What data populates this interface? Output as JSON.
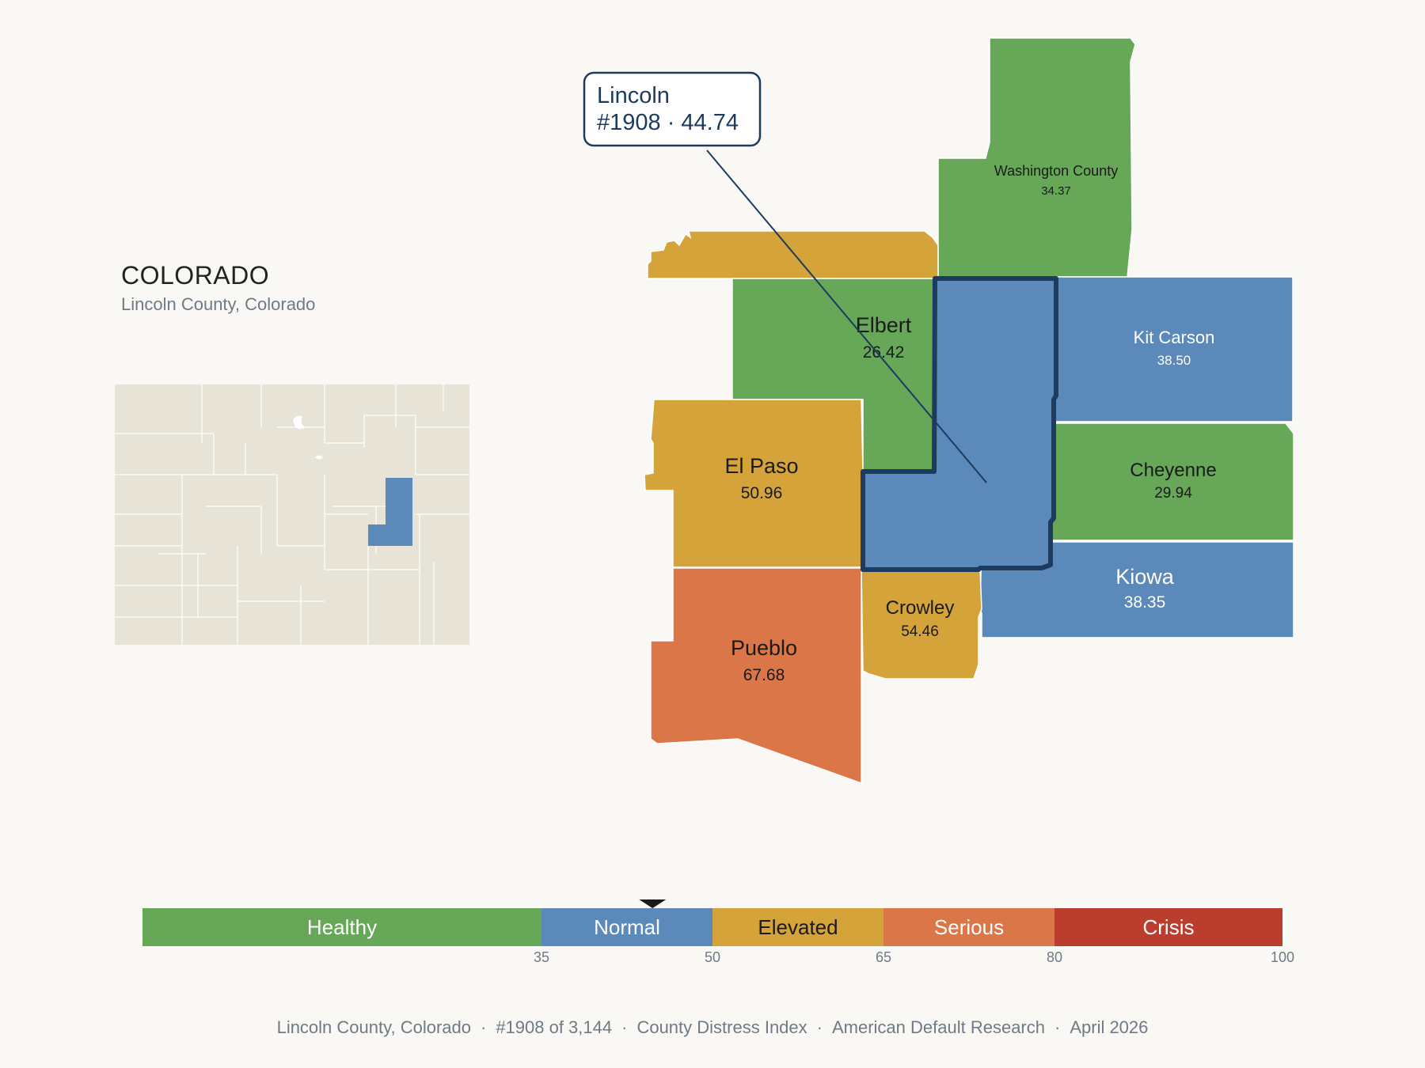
{
  "header": {
    "state": "COLORADO",
    "subtitle": "Lincoln County, Colorado"
  },
  "callout": {
    "name": "Lincoln",
    "rank_value": "#1908 · 44.74"
  },
  "counties": [
    {
      "id": "washington",
      "name": "Washington County",
      "value": "34.37",
      "category": "Healthy"
    },
    {
      "id": "elbert",
      "name": "Elbert",
      "value": "26.42",
      "category": "Healthy"
    },
    {
      "id": "kit-carson",
      "name": "Kit Carson",
      "value": "38.50",
      "category": "Normal"
    },
    {
      "id": "el-paso",
      "name": "El Paso",
      "value": "50.96",
      "category": "Elevated"
    },
    {
      "id": "cheyenne",
      "name": "Cheyenne",
      "value": "29.94",
      "category": "Healthy"
    },
    {
      "id": "kiowa",
      "name": "Kiowa",
      "value": "38.35",
      "category": "Normal"
    },
    {
      "id": "crowley",
      "name": "Crowley",
      "value": "54.46",
      "category": "Elevated"
    },
    {
      "id": "pueblo",
      "name": "Pueblo",
      "value": "67.68",
      "category": "Serious"
    },
    {
      "id": "lincoln",
      "name": "Lincoln",
      "value": "44.74",
      "category": "Normal"
    }
  ],
  "legend": {
    "bands": [
      {
        "label": "Healthy",
        "min": 0,
        "max": 35,
        "color": "#67a758"
      },
      {
        "label": "Normal",
        "min": 35,
        "max": 50,
        "color": "#5b89b9"
      },
      {
        "label": "Elevated",
        "min": 50,
        "max": 65,
        "color": "#d4a43b"
      },
      {
        "label": "Serious",
        "min": 65,
        "max": 80,
        "color": "#db7649"
      },
      {
        "label": "Crisis",
        "min": 80,
        "max": 100,
        "color": "#bb3d2e"
      }
    ],
    "ticks": [
      "35",
      "50",
      "65",
      "80",
      "100"
    ],
    "marker_value": 44.74
  },
  "footer": {
    "location": "Lincoln County, Colorado",
    "rank": "#1908 of 3,144",
    "index": "County Distress Index",
    "source": "American Default Research",
    "date": "April 2026"
  },
  "colors": {
    "healthy": "#67a758",
    "normal": "#5b89b9",
    "elevated": "#d4a43b",
    "serious": "#db7649",
    "crisis": "#bb3d2e",
    "highlight_outline": "#1d3a5f",
    "inset_fill": "#e8e3d7"
  }
}
